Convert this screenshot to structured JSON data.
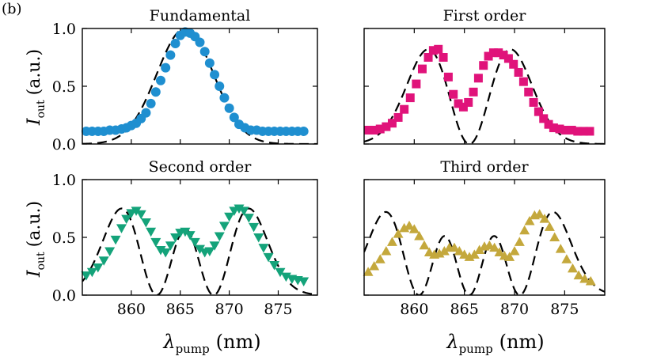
{
  "panel_label": "(b)",
  "ylabel": {
    "main": "I",
    "sub": "out",
    "unit": "(a.u.)"
  },
  "xlabel": {
    "main": "λ",
    "sub": "pump",
    "unit": "(nm)"
  },
  "colors": {
    "fundamental": "#1f8fd0",
    "first": "#e0137a",
    "second": "#14a37a",
    "third": "#c4a83c",
    "model": "#000000"
  },
  "chart_data": [
    {
      "type": "scatter",
      "title": "Fundamental",
      "marker": "circle",
      "xlim": [
        855,
        879
      ],
      "ylim": [
        0,
        1
      ],
      "xticks": [
        860,
        865,
        870,
        875
      ],
      "yticks": [
        0.0,
        0.5,
        1.0
      ],
      "ytick_labels": [
        "0.0",
        "0.5",
        "1.0"
      ],
      "xtick_labels": [],
      "series": [
        {
          "name": "measured",
          "kind": "markers",
          "x": [
            855.4,
            856.0,
            856.6,
            857.2,
            857.8,
            858.4,
            859.0,
            859.5,
            860.0,
            860.5,
            861.0,
            861.5,
            862.0,
            862.5,
            863.0,
            863.5,
            864.0,
            864.5,
            865.0,
            865.5,
            866.0,
            866.5,
            867.0,
            867.5,
            868.0,
            868.5,
            869.0,
            869.5,
            870.0,
            870.5,
            871.0,
            871.6,
            872.2,
            872.8,
            873.4,
            874.0,
            874.6,
            875.2,
            875.8,
            876.4,
            877.0,
            877.6
          ],
          "y": [
            0.11,
            0.11,
            0.11,
            0.11,
            0.12,
            0.12,
            0.13,
            0.14,
            0.16,
            0.18,
            0.22,
            0.27,
            0.35,
            0.45,
            0.55,
            0.66,
            0.77,
            0.87,
            0.94,
            0.97,
            0.96,
            0.93,
            0.88,
            0.8,
            0.7,
            0.6,
            0.5,
            0.4,
            0.31,
            0.23,
            0.17,
            0.14,
            0.12,
            0.12,
            0.11,
            0.11,
            0.11,
            0.11,
            0.11,
            0.11,
            0.11,
            0.11
          ]
        },
        {
          "name": "model",
          "kind": "dashed",
          "curve": "gaussian",
          "centers": [
            865.5
          ],
          "sigma": 2.9,
          "amp": 1.0
        }
      ]
    },
    {
      "type": "scatter",
      "title": "First order",
      "marker": "square",
      "xlim": [
        855,
        879
      ],
      "ylim": [
        0,
        1
      ],
      "xticks": [
        860,
        865,
        870,
        875
      ],
      "yticks": [
        0.0,
        0.5,
        1.0
      ],
      "ytick_labels": [],
      "xtick_labels": [],
      "series": [
        {
          "name": "measured",
          "kind": "markers",
          "x": [
            855.4,
            856.0,
            856.6,
            857.2,
            857.8,
            858.4,
            859.0,
            859.6,
            860.2,
            860.8,
            861.4,
            861.9,
            862.4,
            862.9,
            863.4,
            863.9,
            864.4,
            864.9,
            865.4,
            865.9,
            866.4,
            866.9,
            867.4,
            867.9,
            868.4,
            868.9,
            869.4,
            869.9,
            870.4,
            870.9,
            871.4,
            871.9,
            872.4,
            872.9,
            873.4,
            873.9,
            874.5,
            875.1,
            875.7,
            876.3,
            876.9,
            877.5
          ],
          "y": [
            0.12,
            0.12,
            0.13,
            0.15,
            0.18,
            0.23,
            0.3,
            0.4,
            0.52,
            0.65,
            0.75,
            0.81,
            0.82,
            0.75,
            0.58,
            0.43,
            0.35,
            0.32,
            0.36,
            0.45,
            0.57,
            0.68,
            0.76,
            0.79,
            0.79,
            0.77,
            0.74,
            0.69,
            0.62,
            0.54,
            0.45,
            0.36,
            0.28,
            0.22,
            0.17,
            0.14,
            0.13,
            0.12,
            0.12,
            0.11,
            0.11,
            0.11
          ]
        },
        {
          "name": "model",
          "kind": "dashed",
          "curve": "hermite",
          "order": 1,
          "center": 865.5,
          "sigma": 2.9,
          "amp": 0.82
        }
      ]
    },
    {
      "type": "scatter",
      "title": "Second order",
      "marker": "triangle-down",
      "xlim": [
        855,
        879
      ],
      "ylim": [
        0,
        1
      ],
      "xticks": [
        860,
        865,
        870,
        875
      ],
      "yticks": [
        0.0,
        0.5,
        1.0
      ],
      "ytick_labels": [
        "0.0",
        "0.5",
        "1.0"
      ],
      "xtick_labels": [
        "860",
        "865",
        "870",
        "875"
      ],
      "series": [
        {
          "name": "measured",
          "kind": "markers",
          "x": [
            855.4,
            856.0,
            856.6,
            857.2,
            857.8,
            858.4,
            859.0,
            859.5,
            860.0,
            860.5,
            861.0,
            861.5,
            862.0,
            862.5,
            863.0,
            863.5,
            864.0,
            864.5,
            865.0,
            865.5,
            866.0,
            866.5,
            867.0,
            867.5,
            868.0,
            868.5,
            869.0,
            869.5,
            870.0,
            870.5,
            871.0,
            871.5,
            872.0,
            872.5,
            873.0,
            873.5,
            874.0,
            874.6,
            875.2,
            875.8,
            876.4,
            877.0,
            877.6
          ],
          "y": [
            0.17,
            0.2,
            0.24,
            0.3,
            0.38,
            0.48,
            0.58,
            0.66,
            0.71,
            0.73,
            0.7,
            0.63,
            0.55,
            0.46,
            0.39,
            0.37,
            0.43,
            0.5,
            0.54,
            0.55,
            0.52,
            0.46,
            0.4,
            0.37,
            0.38,
            0.43,
            0.51,
            0.6,
            0.68,
            0.73,
            0.75,
            0.73,
            0.67,
            0.59,
            0.5,
            0.41,
            0.33,
            0.26,
            0.2,
            0.16,
            0.14,
            0.13,
            0.12
          ]
        },
        {
          "name": "model",
          "kind": "dashed",
          "curve": "hermite",
          "order": 2,
          "center": 865.5,
          "sigma": 2.9,
          "amp": 0.75
        }
      ]
    },
    {
      "type": "scatter",
      "title": "Third order",
      "marker": "triangle-up",
      "xlim": [
        855,
        879
      ],
      "ylim": [
        0,
        1
      ],
      "xticks": [
        860,
        865,
        870,
        875
      ],
      "yticks": [
        0.0,
        0.5,
        1.0
      ],
      "ytick_labels": [],
      "xtick_labels": [
        "860",
        "865",
        "870",
        "875"
      ],
      "series": [
        {
          "name": "measured",
          "kind": "markers",
          "x": [
            855.4,
            856.0,
            856.6,
            857.2,
            857.8,
            858.4,
            859.0,
            859.5,
            860.0,
            860.5,
            861.0,
            861.5,
            862.0,
            862.5,
            863.0,
            863.5,
            864.0,
            864.5,
            865.0,
            865.5,
            866.0,
            866.5,
            867.0,
            867.5,
            868.0,
            868.5,
            869.0,
            869.5,
            870.0,
            870.5,
            871.0,
            871.5,
            872.0,
            872.5,
            873.0,
            873.5,
            874.0,
            874.6,
            875.2,
            875.8,
            876.4,
            877.0,
            877.6
          ],
          "y": [
            0.2,
            0.25,
            0.31,
            0.38,
            0.46,
            0.53,
            0.58,
            0.6,
            0.57,
            0.51,
            0.43,
            0.37,
            0.35,
            0.36,
            0.38,
            0.41,
            0.41,
            0.38,
            0.35,
            0.33,
            0.35,
            0.39,
            0.42,
            0.43,
            0.41,
            0.37,
            0.34,
            0.33,
            0.38,
            0.46,
            0.56,
            0.64,
            0.69,
            0.7,
            0.66,
            0.59,
            0.5,
            0.4,
            0.31,
            0.23,
            0.17,
            0.14,
            0.12
          ]
        },
        {
          "name": "model",
          "kind": "dashed",
          "curve": "hermite",
          "order": 3,
          "center": 865.5,
          "sigma": 2.9,
          "amp": 0.72
        }
      ]
    }
  ]
}
